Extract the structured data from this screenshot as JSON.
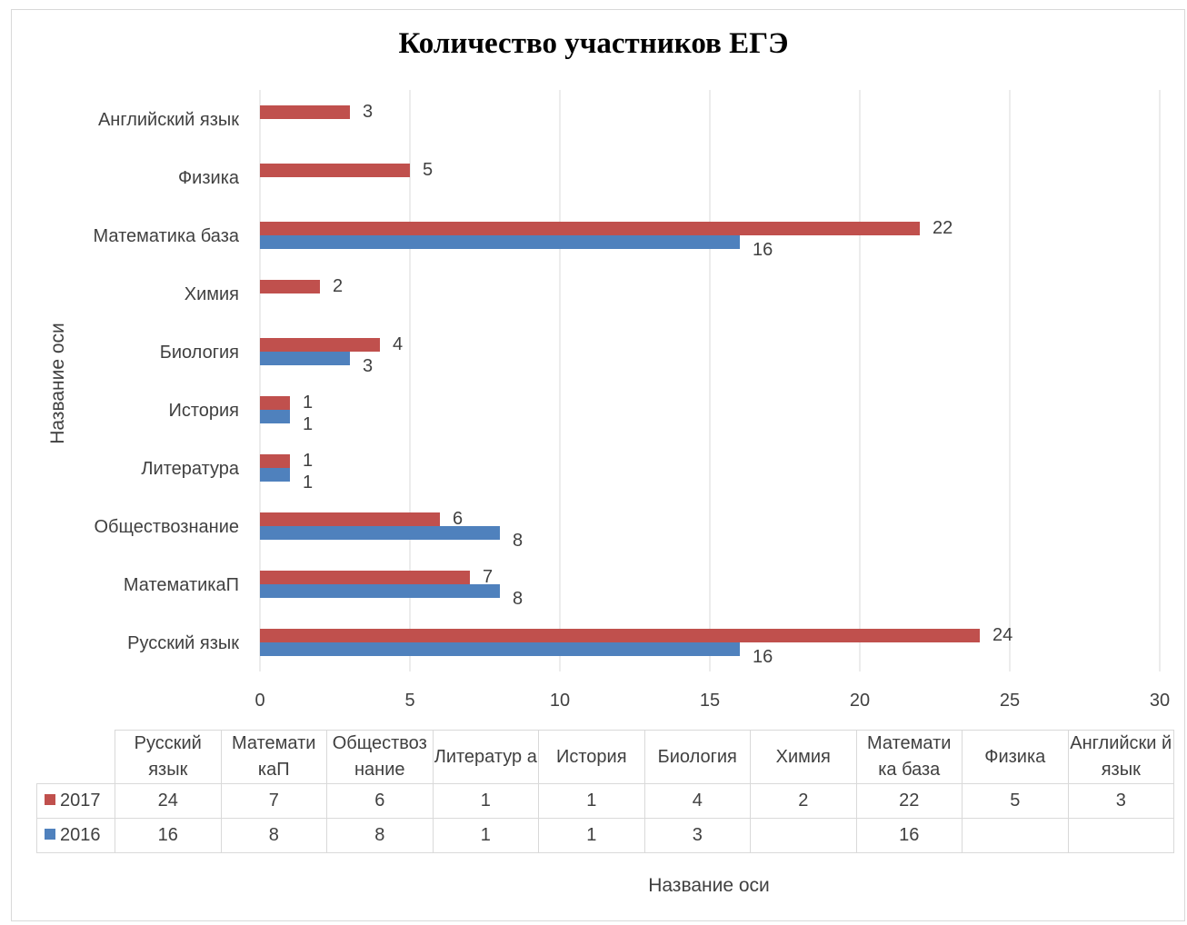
{
  "chart_data": {
    "type": "bar",
    "orientation": "horizontal",
    "title": "Количество участников ЕГЭ",
    "xlabel": "Название оси",
    "ylabel": "Название оси",
    "xlim": [
      0,
      30
    ],
    "x_ticks": [
      "0",
      "5",
      "10",
      "15",
      "20",
      "25",
      "30"
    ],
    "grid": true,
    "legend": "data-table",
    "categories": [
      "Русский язык",
      "МатематикаП",
      "Обществознание",
      "Литература",
      "История",
      "Биология",
      "Химия",
      "Математика база",
      "Физика",
      "Английский язык"
    ],
    "table_headers": [
      "Русский язык",
      "Математи каП",
      "Обществоз нание",
      "Литератур а",
      "История",
      "Биология",
      "Химия",
      "Математи ка база",
      "Физика",
      "Английски й язык"
    ],
    "series": [
      {
        "name": "2017",
        "color": "#c0504d",
        "values": [
          24,
          7,
          6,
          1,
          1,
          4,
          2,
          22,
          5,
          3
        ]
      },
      {
        "name": "2016",
        "color": "#4f81bd",
        "values": [
          16,
          8,
          8,
          1,
          1,
          3,
          null,
          16,
          null,
          null
        ]
      }
    ]
  }
}
